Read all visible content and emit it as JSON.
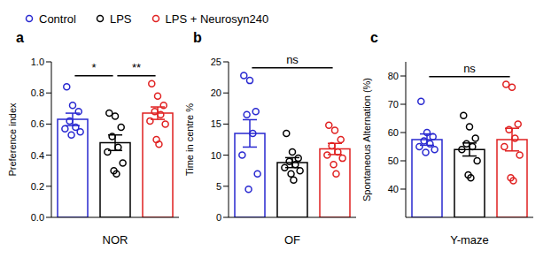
{
  "chart_data": [
    {
      "type": "bar",
      "title": "a",
      "x_label": "NOR",
      "y_label": "Preference index",
      "legend": "top",
      "marker": "circle",
      "categories": [
        null
      ],
      "ylim": [
        0,
        1
      ],
      "yticks": [
        {
          "value": 0,
          "label": "0.0"
        },
        0.2,
        0.4,
        0.6,
        0.8,
        {
          "value": 1,
          "label": "1.0"
        }
      ],
      "series": [
        {
          "name": "Control",
          "color": "#2828d0",
          "values": [
            0.63
          ],
          "errors": [
            0.04
          ],
          "points": [
            [
              0.84,
              0.72,
              0.68,
              0.62,
              0.58,
              0.57,
              0.55,
              0.53
            ]
          ]
        },
        {
          "name": "LPS",
          "color": "#000000",
          "values": [
            0.48
          ],
          "errors": [
            0.05
          ],
          "points": [
            [
              0.67,
              0.65,
              0.58,
              0.52,
              0.45,
              0.42,
              0.35,
              0.3,
              0.28
            ]
          ]
        },
        {
          "name": "LPS + Neurosyn240",
          "color": "#e02020",
          "values": [
            0.67
          ],
          "errors": [
            0.04
          ],
          "points": [
            [
              0.86,
              0.78,
              0.72,
              0.68,
              0.66,
              0.62,
              0.6,
              0.5,
              0.47
            ]
          ]
        }
      ],
      "annotations": [
        {
          "text": "*",
          "from": "Control",
          "to": "LPS"
        },
        {
          "text": "**",
          "from": "LPS",
          "to": "LPS + Neurosyn240"
        }
      ]
    },
    {
      "type": "bar",
      "title": "b",
      "x_label": "OF",
      "y_label": "Time in centre %",
      "marker": "circle",
      "categories": [
        null
      ],
      "ylim": [
        0,
        25
      ],
      "yticks": [
        0,
        5,
        10,
        15,
        20,
        25
      ],
      "series": [
        {
          "name": "Control",
          "color": "#2828d0",
          "values": [
            13.5
          ],
          "errors": [
            2.2
          ],
          "points": [
            [
              22.8,
              22.0,
              17.0,
              16.5,
              13.5,
              10.0,
              7.0,
              4.5
            ]
          ]
        },
        {
          "name": "LPS",
          "color": "#000000",
          "values": [
            8.8
          ],
          "errors": [
            0.8
          ],
          "points": [
            [
              13.5,
              10.5,
              9.5,
              9.0,
              8.5,
              8.0,
              7.5,
              7.0,
              6.0
            ]
          ]
        },
        {
          "name": "LPS + Neurosyn240",
          "color": "#e02020",
          "values": [
            11.0
          ],
          "errors": [
            0.9
          ],
          "points": [
            [
              14.8,
              14.0,
              12.5,
              11.5,
              10.5,
              10.0,
              9.5,
              8.5,
              7.0
            ]
          ]
        }
      ],
      "annotations": [
        {
          "text": "ns",
          "from": "Control",
          "to": "LPS + Neurosyn240"
        }
      ]
    },
    {
      "type": "bar",
      "title": "c",
      "x_label": "Y-maze",
      "y_label": "Spontaneous Alternation (%)",
      "marker": "circle",
      "categories": [
        null
      ],
      "ylim": [
        30,
        85
      ],
      "yticks": [
        40,
        50,
        60,
        70,
        80
      ],
      "series": [
        {
          "name": "Control",
          "color": "#2828d0",
          "values": [
            57.5
          ],
          "errors": [
            2.0
          ],
          "points": [
            [
              71,
              60,
              58.5,
              57,
              56,
              55,
              54,
              53
            ]
          ]
        },
        {
          "name": "LPS",
          "color": "#000000",
          "values": [
            54.0
          ],
          "errors": [
            2.3
          ],
          "points": [
            [
              66,
              62,
              58,
              56,
              55,
              54,
              50,
              45,
              44
            ]
          ]
        },
        {
          "name": "LPS + Neurosyn240",
          "color": "#e02020",
          "values": [
            57.5
          ],
          "errors": [
            4.0
          ],
          "points": [
            [
              77,
              76,
              63,
              61,
              58,
              55,
              52,
              44,
              43
            ]
          ]
        }
      ],
      "annotations": [
        {
          "text": "ns",
          "from": "Control",
          "to": "LPS + Neurosyn240"
        }
      ]
    }
  ]
}
